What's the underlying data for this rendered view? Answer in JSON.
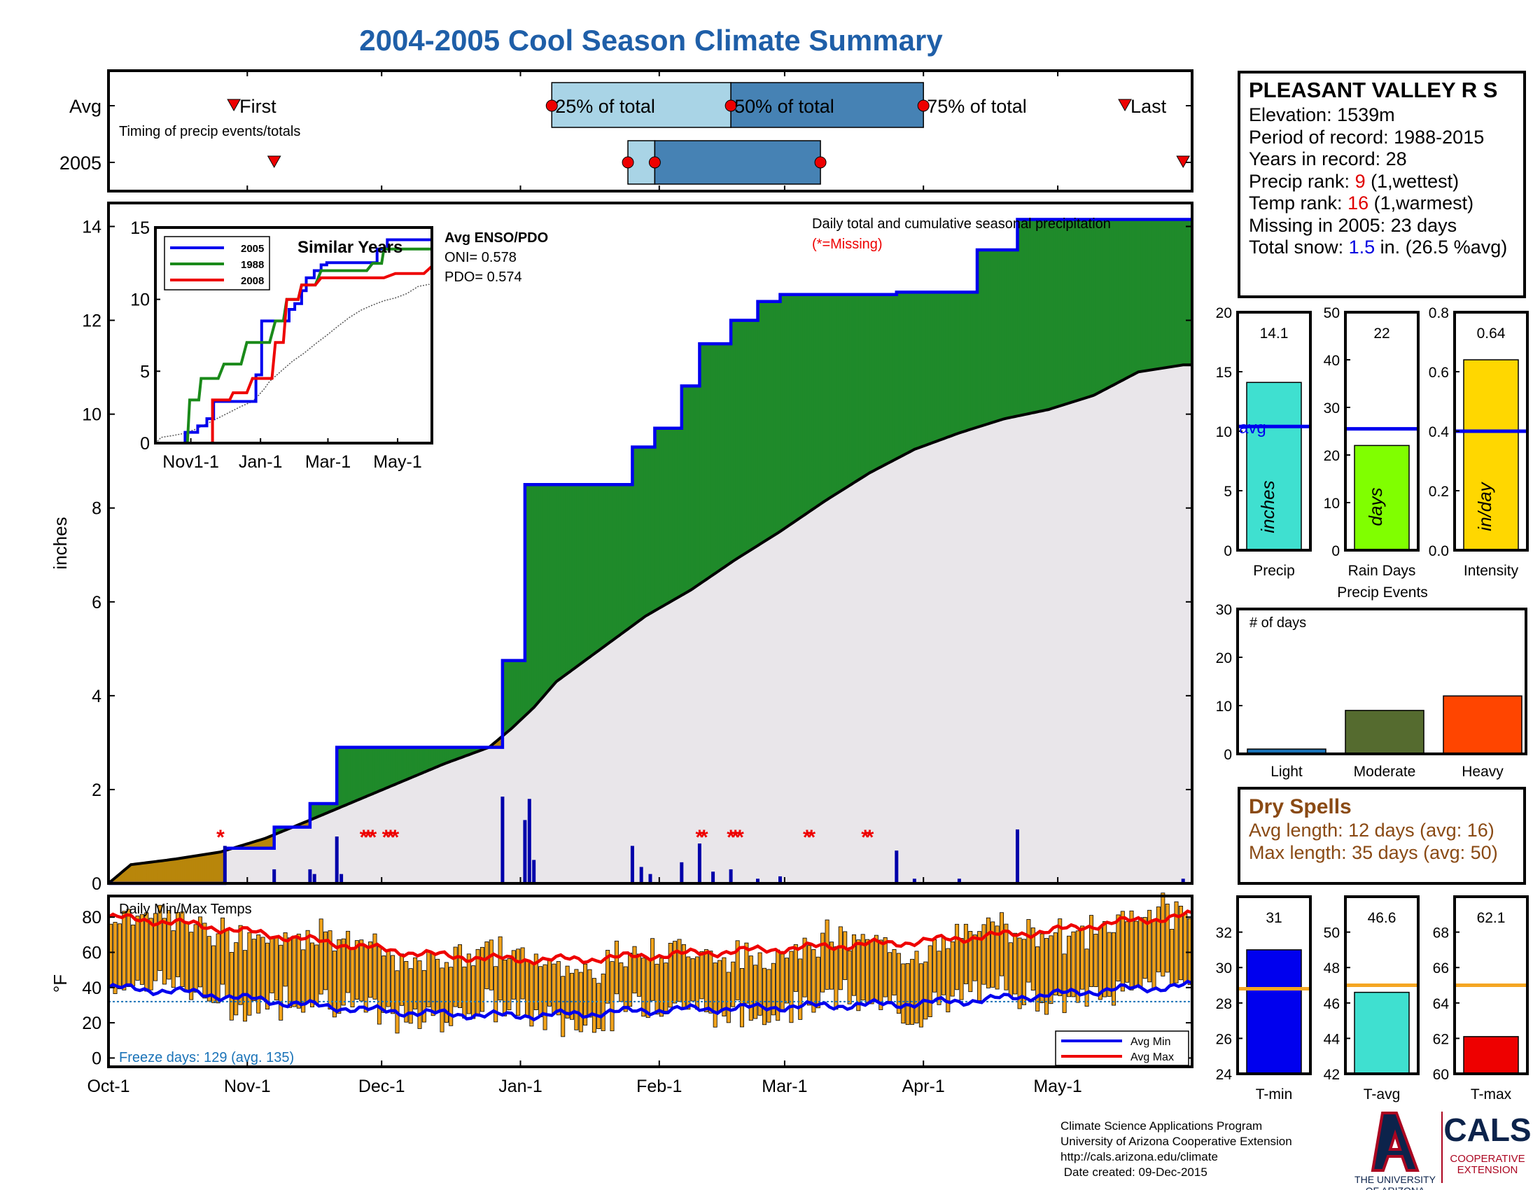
{
  "title": "2004-2005 Cool Season Climate Summary",
  "station": {
    "name": "PLEASANT VALLEY R S",
    "lines": [
      {
        "label": "Elevation: ",
        "value": "1539m",
        "suffix": ""
      },
      {
        "label": "Period of record: ",
        "value": "1988-2015",
        "suffix": ""
      },
      {
        "label": "Years in record: ",
        "value": "28",
        "suffix": ""
      },
      {
        "label": "Precip rank: ",
        "value": "9",
        "suffix": " (1,wettest)",
        "color": "red"
      },
      {
        "label": "Temp rank: ",
        "value": "16",
        "suffix": " (1,warmest)",
        "color": "red"
      },
      {
        "label": "Missing in 2005: ",
        "value": "23 days",
        "suffix": ""
      },
      {
        "label": "Total snow: ",
        "value": "1.5",
        "suffix": " in. (26.5 %avg)",
        "color": "blue"
      }
    ]
  },
  "dry_spells": {
    "title": "Dry Spells",
    "avg_line": "Avg length: 12 days (avg: 16)",
    "max_line": "Max length: 35 days (avg: 50)"
  },
  "credits": [
    "Climate Science Applications Program",
    "University of Arizona Cooperative Extension",
    "http://cals.arizona.edu/climate",
    " Date created: 09-Dec-2015"
  ],
  "logos": {
    "ua_text": [
      "THE UNIVERSITY",
      "OF ARIZONA"
    ],
    "cals_text": "CALS",
    "coop_text": [
      "COOPERATIVE",
      "EXTENSION"
    ]
  },
  "colors": {
    "title": "#1f5fa8",
    "cumulative_2005": "#0000ee",
    "above_avg_fill": "#1f8a2a",
    "below_avg_fill": "#b8860b",
    "avg_area": "#e9e6ea",
    "temp_bars": "#f2a31a",
    "avg_min_line": "#0000ee",
    "avg_max_line": "#ee0000"
  },
  "chart_data": [
    {
      "type": "timing",
      "title": "Timing of precip events/totals",
      "rows": [
        "Avg",
        "2005"
      ],
      "labels": {
        "first": "First",
        "q25": "25% of total",
        "q50": "50% of total",
        "q75": "75% of total",
        "last": "Last"
      },
      "x_unit": "day of season from Oct-1",
      "avg": {
        "first": 28,
        "q25": 99,
        "q50": 139,
        "q75": 182,
        "last": 227
      },
      "y2005": {
        "first": 37,
        "q25": 116,
        "q50": 122,
        "q75": 159,
        "last": 240
      }
    },
    {
      "type": "area",
      "title": "Daily total and cumulative seasonal precipitation",
      "missing_note": "(*=Missing)",
      "ylabel": "inches",
      "ylim": [
        0,
        14.5
      ],
      "yticks": [
        0,
        2,
        4,
        6,
        8,
        10,
        12,
        14
      ],
      "xlim": [
        0,
        242
      ],
      "xticks": [
        {
          "day": 0,
          "label": "Oct-1"
        },
        {
          "day": 31,
          "label": "Nov-1"
        },
        {
          "day": 61,
          "label": "Dec-1"
        },
        {
          "day": 92,
          "label": "Jan-1"
        },
        {
          "day": 123,
          "label": "Feb-1"
        },
        {
          "day": 151,
          "label": "Mar-1"
        },
        {
          "day": 182,
          "label": "Apr-1"
        },
        {
          "day": 212,
          "label": "May-1"
        }
      ],
      "avg_cumulative": [
        [
          0,
          0
        ],
        [
          5,
          0.4
        ],
        [
          15,
          0.52
        ],
        [
          25,
          0.67
        ],
        [
          35,
          0.96
        ],
        [
          45,
          1.35
        ],
        [
          55,
          1.75
        ],
        [
          65,
          2.15
        ],
        [
          75,
          2.55
        ],
        [
          85,
          2.9
        ],
        [
          90,
          3.3
        ],
        [
          95,
          3.75
        ],
        [
          100,
          4.3
        ],
        [
          110,
          5.0
        ],
        [
          120,
          5.7
        ],
        [
          130,
          6.25
        ],
        [
          140,
          6.9
        ],
        [
          150,
          7.5
        ],
        [
          160,
          8.15
        ],
        [
          170,
          8.75
        ],
        [
          180,
          9.25
        ],
        [
          190,
          9.6
        ],
        [
          200,
          9.9
        ],
        [
          210,
          10.1
        ],
        [
          220,
          10.4
        ],
        [
          230,
          10.9
        ],
        [
          240,
          11.05
        ]
      ],
      "cumulative_2005": [
        [
          0,
          0
        ],
        [
          26,
          0
        ],
        [
          26,
          0.75
        ],
        [
          37,
          0.75
        ],
        [
          37,
          1.2
        ],
        [
          45,
          1.2
        ],
        [
          45,
          1.7
        ],
        [
          51,
          1.7
        ],
        [
          51,
          2.9
        ],
        [
          88,
          2.9
        ],
        [
          88,
          4.75
        ],
        [
          93,
          4.75
        ],
        [
          93,
          8.5
        ],
        [
          117,
          8.5
        ],
        [
          117,
          9.3
        ],
        [
          122,
          9.3
        ],
        [
          122,
          9.7
        ],
        [
          128,
          9.7
        ],
        [
          128,
          10.6
        ],
        [
          132,
          10.6
        ],
        [
          132,
          11.5
        ],
        [
          139,
          11.5
        ],
        [
          139,
          12.0
        ],
        [
          145,
          12.0
        ],
        [
          145,
          12.4
        ],
        [
          150,
          12.4
        ],
        [
          150,
          12.55
        ],
        [
          176,
          12.55
        ],
        [
          176,
          12.6
        ],
        [
          182,
          12.6
        ],
        [
          182,
          12.6
        ],
        [
          194,
          12.6
        ],
        [
          194,
          13.5
        ],
        [
          203,
          13.5
        ],
        [
          203,
          14.15
        ],
        [
          242,
          14.15
        ]
      ],
      "daily_2005": [
        [
          26,
          0.8
        ],
        [
          37,
          0.3
        ],
        [
          45,
          0.3
        ],
        [
          46,
          0.2
        ],
        [
          51,
          1.0
        ],
        [
          52,
          0.2
        ],
        [
          88,
          1.85
        ],
        [
          93,
          1.35
        ],
        [
          94,
          1.8
        ],
        [
          95,
          0.5
        ],
        [
          117,
          0.8
        ],
        [
          119,
          0.35
        ],
        [
          121,
          0.2
        ],
        [
          128,
          0.45
        ],
        [
          132,
          0.85
        ],
        [
          135,
          0.25
        ],
        [
          139,
          0.3
        ],
        [
          145,
          0.1
        ],
        [
          150,
          0.15
        ],
        [
          176,
          0.7
        ],
        [
          180,
          0.1
        ],
        [
          190,
          0.1
        ],
        [
          203,
          1.15
        ],
        [
          240,
          0.1
        ]
      ],
      "missing_days": [
        25,
        57,
        58,
        59,
        62,
        63,
        64,
        132,
        133,
        139,
        140,
        141,
        156,
        157,
        169,
        170
      ],
      "inset": {
        "title": "Similar Years",
        "ylim": [
          0,
          15
        ],
        "yticks": [
          0,
          5,
          10,
          15
        ],
        "xticks": [
          "Nov1-1",
          "Jan-1",
          "Mar-1",
          "May-1"
        ],
        "series": [
          {
            "name": "2005",
            "color": "#0000ee",
            "values": [
              [
                0,
                0
              ],
              [
                26,
                0
              ],
              [
                26,
                0.75
              ],
              [
                37,
                0.75
              ],
              [
                37,
                1.2
              ],
              [
                45,
                1.2
              ],
              [
                45,
                1.7
              ],
              [
                51,
                1.7
              ],
              [
                51,
                2.9
              ],
              [
                88,
                2.9
              ],
              [
                88,
                4.75
              ],
              [
                93,
                4.75
              ],
              [
                93,
                8.5
              ],
              [
                117,
                8.5
              ],
              [
                117,
                9.3
              ],
              [
                122,
                9.3
              ],
              [
                122,
                9.7
              ],
              [
                128,
                9.7
              ],
              [
                128,
                10.6
              ],
              [
                132,
                10.6
              ],
              [
                132,
                11.5
              ],
              [
                139,
                11.5
              ],
              [
                139,
                12.0
              ],
              [
                145,
                12.0
              ],
              [
                145,
                12.4
              ],
              [
                150,
                12.4
              ],
              [
                150,
                12.55
              ],
              [
                194,
                12.55
              ],
              [
                194,
                13.5
              ],
              [
                203,
                13.5
              ],
              [
                203,
                14.15
              ],
              [
                242,
                14.15
              ]
            ]
          },
          {
            "name": "1988",
            "color": "#1a8a1a",
            "values": [
              [
                0,
                0
              ],
              [
                28,
                0
              ],
              [
                30,
                3
              ],
              [
                38,
                3
              ],
              [
                40,
                4.5
              ],
              [
                55,
                4.5
              ],
              [
                60,
                5.5
              ],
              [
                75,
                5.5
              ],
              [
                80,
                7
              ],
              [
                100,
                7
              ],
              [
                105,
                8.5
              ],
              [
                112,
                8.5
              ],
              [
                115,
                10
              ],
              [
                125,
                10
              ],
              [
                128,
                11
              ],
              [
                140,
                11
              ],
              [
                145,
                12
              ],
              [
                185,
                12
              ],
              [
                190,
                12.5
              ],
              [
                198,
                12.5
              ],
              [
                200,
                13.5
              ],
              [
                242,
                13.5
              ]
            ]
          },
          {
            "name": "2008",
            "color": "#ee0000",
            "values": [
              [
                0,
                0
              ],
              [
                50,
                0
              ],
              [
                50,
                3
              ],
              [
                65,
                3
              ],
              [
                68,
                3.5
              ],
              [
                80,
                3.5
              ],
              [
                85,
                4.5
              ],
              [
                102,
                4.5
              ],
              [
                105,
                7
              ],
              [
                112,
                7
              ],
              [
                115,
                10
              ],
              [
                125,
                10
              ],
              [
                128,
                11
              ],
              [
                140,
                11
              ],
              [
                145,
                11.5
              ],
              [
                200,
                11.5
              ],
              [
                210,
                11.8
              ],
              [
                235,
                11.8
              ],
              [
                242,
                12.3
              ]
            ]
          }
        ]
      },
      "enso": {
        "title": "Avg ENSO/PDO",
        "oni": "ONI= 0.578",
        "pdo": "PDO= 0.574"
      }
    },
    {
      "type": "bar",
      "panel": "temperature",
      "title": "Daily Min/Max Temps",
      "ylabel": "°F",
      "ylim": [
        -5,
        92
      ],
      "yticks": [
        0,
        20,
        40,
        60,
        80
      ],
      "freeze_label": "Freeze days: 129 (avg. 135)",
      "freeze_line": 32,
      "legend": [
        "Avg Min",
        "Avg Max"
      ],
      "avg_min": [
        [
          0,
          40
        ],
        [
          15,
          38
        ],
        [
          30,
          34
        ],
        [
          45,
          30
        ],
        [
          60,
          27
        ],
        [
          75,
          25
        ],
        [
          90,
          24
        ],
        [
          105,
          25
        ],
        [
          120,
          27
        ],
        [
          135,
          28
        ],
        [
          150,
          29
        ],
        [
          165,
          30
        ],
        [
          180,
          31
        ],
        [
          195,
          33
        ],
        [
          210,
          36
        ],
        [
          225,
          39
        ],
        [
          242,
          41
        ]
      ],
      "avg_max": [
        [
          0,
          80
        ],
        [
          15,
          77
        ],
        [
          30,
          72
        ],
        [
          45,
          67
        ],
        [
          60,
          62
        ],
        [
          75,
          58
        ],
        [
          90,
          56
        ],
        [
          105,
          56
        ],
        [
          120,
          58
        ],
        [
          135,
          60
        ],
        [
          150,
          62
        ],
        [
          165,
          64
        ],
        [
          180,
          66
        ],
        [
          195,
          69
        ],
        [
          210,
          72
        ],
        [
          225,
          77
        ],
        [
          242,
          81
        ]
      ]
    },
    {
      "type": "bar",
      "panel": "precip-summary",
      "categories": [
        "Precip",
        "Rain Days",
        "Intensity"
      ],
      "series": [
        {
          "name": "Precip",
          "value": 14.1,
          "label": "14.1",
          "avg": 10.4,
          "ylim": [
            0,
            20
          ],
          "yticks": [
            0,
            5,
            10,
            15,
            20
          ],
          "color": "#3fe0d0",
          "unit": "inches",
          "avg_text": "avg"
        },
        {
          "name": "Rain Days",
          "value": 22,
          "label": "22",
          "avg": 25.5,
          "ylim": [
            0,
            50
          ],
          "yticks": [
            0,
            10,
            20,
            30,
            40,
            50
          ],
          "color": "#80ff00",
          "unit": "days"
        },
        {
          "name": "Intensity",
          "value": 0.64,
          "label": "0.64",
          "avg": 0.4,
          "ylim": [
            0,
            0.8
          ],
          "yticks": [
            0,
            0.2,
            0.4,
            0.6,
            0.8
          ],
          "color": "#ffd700",
          "unit": "in/day"
        }
      ]
    },
    {
      "type": "bar",
      "panel": "precip-events",
      "title": "Precip Events",
      "ylabel": "# of days",
      "ylim": [
        0,
        30
      ],
      "yticks": [
        0,
        10,
        20,
        30
      ],
      "categories": [
        "Light",
        "Moderate",
        "Heavy"
      ],
      "values": [
        1,
        9,
        12
      ],
      "colors": [
        "#1a73b8",
        "#556b2f",
        "#ff4500"
      ]
    },
    {
      "type": "bar",
      "panel": "temp-summary",
      "categories": [
        "T-min",
        "T-avg",
        "T-max"
      ],
      "series": [
        {
          "name": "T-min",
          "value": 31,
          "label": "31",
          "avg": 28.8,
          "ylim": [
            24,
            34
          ],
          "yticks": [
            24,
            26,
            28,
            30,
            32
          ],
          "color": "#0000ee"
        },
        {
          "name": "T-avg",
          "value": 46.6,
          "label": "46.6",
          "avg": 47.0,
          "ylim": [
            42,
            52
          ],
          "yticks": [
            42,
            44,
            46,
            48,
            50
          ],
          "color": "#3fe0d0"
        },
        {
          "name": "T-max",
          "value": 62.1,
          "label": "62.1",
          "avg": 65.0,
          "ylim": [
            60,
            70
          ],
          "yticks": [
            60,
            62,
            64,
            66,
            68
          ],
          "color": "#ee0000"
        }
      ]
    }
  ]
}
